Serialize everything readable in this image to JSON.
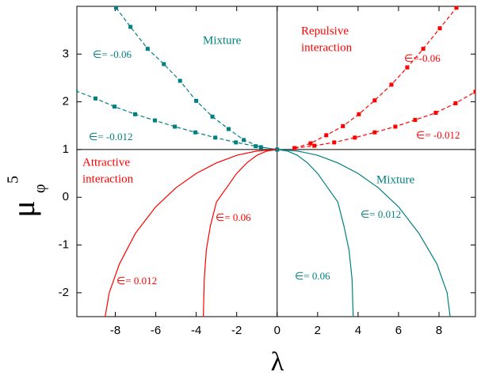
{
  "chart_data": {
    "type": "line",
    "xlabel": "λ",
    "ylabel": {
      "base": "μ",
      "sub": "φ",
      "sup": "5"
    },
    "xlim": [
      -9.9,
      9.8
    ],
    "ylim": [
      -2.5,
      4
    ],
    "xticks": [
      -8,
      -6,
      -4,
      -2,
      0,
      2,
      4,
      6,
      8
    ],
    "yticks": [
      -2,
      -1,
      0,
      1,
      2,
      3
    ],
    "hlines": [
      1
    ],
    "vlines": [
      0
    ],
    "series": [
      {
        "name": "∈= -0.06",
        "color": "#008080",
        "dashed": true,
        "markers": true,
        "x": [
          -7.96,
          -7.25,
          -6.4,
          -5.6,
          -4.8,
          -4.0,
          -3.2,
          -2.4,
          -1.65,
          -0.8,
          0
        ],
        "values": [
          3.97,
          3.57,
          3.11,
          2.79,
          2.44,
          2.02,
          1.69,
          1.43,
          1.2,
          1.05,
          1
        ]
      },
      {
        "name": "∈= -0.012",
        "color": "#008080",
        "dashed": true,
        "markers": true,
        "x": [
          -9.96,
          -8.98,
          -8.04,
          -7.02,
          -6.04,
          -5.06,
          -4.04,
          -3.06,
          -2.04,
          -1.06,
          0
        ],
        "values": [
          2.23,
          2.07,
          1.9,
          1.74,
          1.61,
          1.48,
          1.36,
          1.25,
          1.15,
          1.07,
          1
        ]
      },
      {
        "name": "∈=-0.06",
        "color": "#ff0000",
        "dashed": true,
        "markers": true,
        "x": [
          0.86,
          1.65,
          2.43,
          3.25,
          4.04,
          4.82,
          5.65,
          6.43,
          7.22,
          8.04,
          8.86
        ],
        "values": [
          1.03,
          1.13,
          1.3,
          1.49,
          1.74,
          2.03,
          2.36,
          2.72,
          3.11,
          3.54,
          3.97
        ]
      },
      {
        "name": "∈= -0.012",
        "color": "#ff0000",
        "dashed": true,
        "markers": true,
        "x": [
          0.86,
          1.84,
          2.82,
          3.84,
          4.82,
          5.84,
          6.82,
          7.84,
          8.82,
          9.8
        ],
        "values": [
          1.03,
          1.08,
          1.15,
          1.25,
          1.36,
          1.48,
          1.62,
          1.77,
          1.97,
          2.21
        ]
      },
      {
        "name": "∈= 0.06",
        "color": "#ff0000",
        "dashed": false,
        "markers": false,
        "x": [
          0,
          -0.5,
          -1,
          -1.5,
          -2,
          -2.5,
          -3,
          -3.3,
          -3.5,
          -3.6,
          -3.65
        ],
        "values": [
          1,
          0.97,
          0.88,
          0.72,
          0.5,
          0.2,
          -0.1,
          -0.6,
          -1.1,
          -1.7,
          -2.5
        ]
      },
      {
        "name": "∈= 0.012",
        "color": "#ff0000",
        "dashed": false,
        "markers": false,
        "x": [
          0,
          -1,
          -2,
          -3,
          -4,
          -5,
          -6,
          -7,
          -7.8,
          -8.3,
          -8.5
        ],
        "values": [
          1,
          0.97,
          0.88,
          0.72,
          0.5,
          0.2,
          -0.2,
          -0.75,
          -1.4,
          -2.0,
          -2.5
        ]
      },
      {
        "name": "∈= 0.012",
        "color": "#008080",
        "dashed": false,
        "markers": false,
        "x": [
          0,
          1,
          2,
          3,
          4,
          5,
          6,
          7,
          7.9,
          8.4,
          8.55
        ],
        "values": [
          1,
          0.97,
          0.88,
          0.72,
          0.5,
          0.2,
          -0.2,
          -0.75,
          -1.4,
          -2.0,
          -2.5
        ]
      },
      {
        "name": "∈= 0.06",
        "color": "#008080",
        "dashed": false,
        "markers": false,
        "x": [
          0,
          0.5,
          1,
          1.5,
          2,
          2.5,
          3,
          3.3,
          3.55,
          3.7,
          3.76
        ],
        "values": [
          1,
          0.97,
          0.88,
          0.72,
          0.5,
          0.2,
          -0.1,
          -0.6,
          -1.1,
          -1.7,
          -2.5
        ]
      }
    ],
    "annotations": [
      {
        "lines": [
          "Mixture"
        ],
        "color": "#008080"
      },
      {
        "lines": [
          "Repulsive",
          "interaction"
        ],
        "color": "#ff0000"
      },
      {
        "lines": [
          "Attractive",
          "interaction"
        ],
        "color": "#ff0000"
      },
      {
        "lines": [
          "Mixture"
        ],
        "color": "#008080"
      }
    ]
  }
}
